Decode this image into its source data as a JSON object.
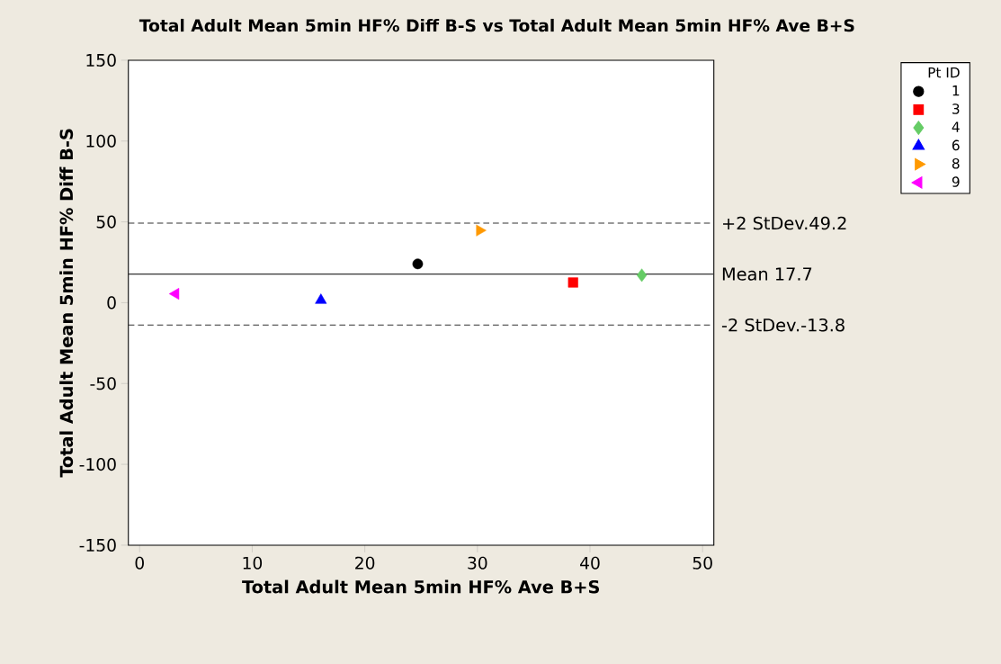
{
  "chart_data": {
    "type": "scatter",
    "title": "Total Adult Mean 5min HF% Diff B-S vs Total Adult Mean 5min HF% Ave B+S",
    "xlabel": "Total Adult Mean 5min HF% Ave B+S",
    "ylabel": "Total Adult Mean 5min HF% Diff B-S",
    "legend_title": "Pt ID",
    "legend": "top right",
    "grid": false,
    "xlim": [
      -1,
      51
    ],
    "xticks": [
      0,
      10,
      20,
      30,
      40,
      50
    ],
    "ylim": [
      -150,
      150
    ],
    "yticks": [
      -150,
      -100,
      -50,
      0,
      50,
      100,
      150
    ],
    "series": [
      {
        "name": "1",
        "color": "#000000",
        "marker": "circle",
        "x": [
          24.7
        ],
        "values": [
          24
        ]
      },
      {
        "name": "3",
        "color": "#ff0000",
        "marker": "square",
        "x": [
          38.5
        ],
        "values": [
          12.5
        ]
      },
      {
        "name": "4",
        "color": "#66cc66",
        "marker": "diamond",
        "x": [
          44.6
        ],
        "values": [
          17
        ]
      },
      {
        "name": "6",
        "color": "#0000ff",
        "marker": "triangle",
        "x": [
          16.1
        ],
        "values": [
          1.5
        ]
      },
      {
        "name": "8",
        "color": "#ff9900",
        "marker": "triangle-right",
        "x": [
          30.2
        ],
        "values": [
          44.7
        ]
      },
      {
        "name": "9",
        "color": "#ff00ff",
        "marker": "triangle-left",
        "x": [
          3.2
        ],
        "values": [
          5.5
        ]
      }
    ],
    "ref_lines": [
      {
        "axis": "y",
        "value": 49.2,
        "label": "+2 StDev.49.2",
        "line_style": "dashed"
      },
      {
        "axis": "y",
        "value": 17.7,
        "label": "Mean 17.7",
        "line_style": "solid"
      },
      {
        "axis": "y",
        "value": -13.8,
        "label": "-2 StDev.-13.8",
        "line_style": "dashed"
      }
    ]
  }
}
